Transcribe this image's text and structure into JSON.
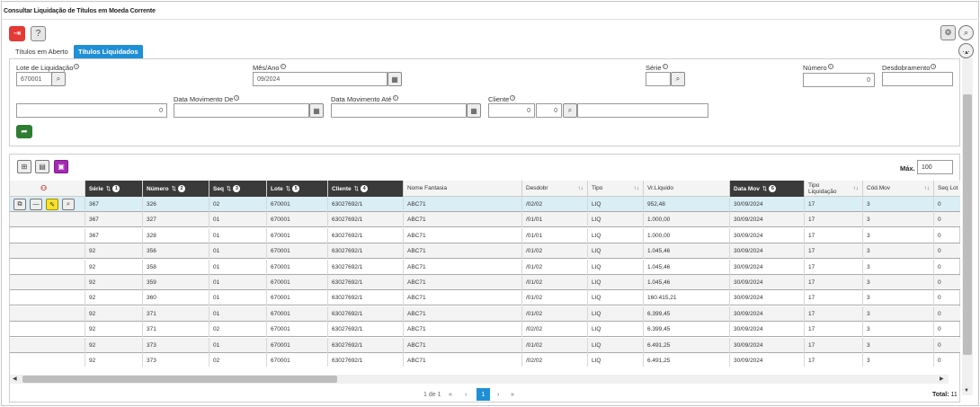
{
  "window": {
    "title": "Consultar Liquidação de Títulos em Moeda Corrente"
  },
  "toolbar": {
    "exit_icon": "exit-icon",
    "help_label": "?",
    "settings_icon": "gear-icon",
    "search_icon": "search-icon",
    "more_label": "···"
  },
  "tabs": [
    {
      "label": "Títulos em Aberto",
      "active": false
    },
    {
      "label": "Títulos Liquidados",
      "active": true
    }
  ],
  "filters": {
    "lote_label": "Lote de Liquidação",
    "lote_value": "670001",
    "mesano_label": "Mês/Ano",
    "mesano_value": "09/2024",
    "serie_label": "Série",
    "serie_value": "",
    "numero_label": "Número",
    "numero_value": "0",
    "desdobramento_label": "Desdobramento",
    "desdobramento_value": "",
    "first_field_value": "0",
    "dmov_de_label": "Data Movimento De",
    "dmov_de_value": "",
    "dmov_ate_label": "Data Movimento Até",
    "dmov_ate_value": "",
    "cliente_label": "Cliente",
    "cliente_value1": "0",
    "cliente_value2": "0",
    "cliente_name": ""
  },
  "grid": {
    "max_label": "Máx.",
    "max_value": "100",
    "columns": [
      {
        "label": "Série",
        "badge": "1"
      },
      {
        "label": "Número",
        "badge": "2"
      },
      {
        "label": "Seq",
        "badge": "3"
      },
      {
        "label": "Lote",
        "badge": "5"
      },
      {
        "label": "Cliente",
        "badge": "4"
      },
      {
        "label": "Nome Fantasia"
      },
      {
        "label": "Desdobr"
      },
      {
        "label": "Tipo"
      },
      {
        "label": "Vr.Líquido"
      },
      {
        "label": "Data Mov",
        "badge": "6"
      },
      {
        "label": "Tipo Liquidação"
      },
      {
        "label": "Cód.Mov"
      },
      {
        "label": "Seq Lot"
      }
    ],
    "rows": [
      [
        "367",
        "326",
        "02",
        "670001",
        "63027692/1",
        "ABC71",
        "/02/02",
        "LIQ",
        "952,48",
        "30/09/2024",
        "17",
        "3",
        "0"
      ],
      [
        "367",
        "327",
        "01",
        "670001",
        "63027692/1",
        "ABC71",
        "/01/01",
        "LIQ",
        "1.000,00",
        "30/09/2024",
        "17",
        "3",
        "0"
      ],
      [
        "367",
        "328",
        "01",
        "670001",
        "63027692/1",
        "ABC71",
        "/01/01",
        "LIQ",
        "1.000,00",
        "30/09/2024",
        "17",
        "3",
        "0"
      ],
      [
        "92",
        "356",
        "01",
        "670001",
        "63027692/1",
        "ABC71",
        "/01/02",
        "LIQ",
        "1.045,46",
        "30/09/2024",
        "17",
        "3",
        "0"
      ],
      [
        "92",
        "358",
        "01",
        "670001",
        "63027692/1",
        "ABC71",
        "/01/02",
        "LIQ",
        "1.045,46",
        "30/09/2024",
        "17",
        "3",
        "0"
      ],
      [
        "92",
        "359",
        "01",
        "670001",
        "63027692/1",
        "ABC71",
        "/01/02",
        "LIQ",
        "1.045,46",
        "30/09/2024",
        "17",
        "3",
        "0"
      ],
      [
        "92",
        "360",
        "01",
        "670001",
        "63027692/1",
        "ABC71",
        "/01/02",
        "LIQ",
        "160.415,21",
        "30/09/2024",
        "17",
        "3",
        "0"
      ],
      [
        "92",
        "371",
        "01",
        "670001",
        "63027692/1",
        "ABC71",
        "/01/02",
        "LIQ",
        "6.399,45",
        "30/09/2024",
        "17",
        "3",
        "0"
      ],
      [
        "92",
        "371",
        "02",
        "670001",
        "63027692/1",
        "ABC71",
        "/02/02",
        "LIQ",
        "6.399,45",
        "30/09/2024",
        "17",
        "3",
        "0"
      ],
      [
        "92",
        "373",
        "01",
        "670001",
        "63027692/1",
        "ABC71",
        "/01/02",
        "LIQ",
        "6.491,25",
        "30/09/2024",
        "17",
        "3",
        "0"
      ],
      [
        "92",
        "373",
        "02",
        "670001",
        "63027692/1",
        "ABC71",
        "/02/02",
        "LIQ",
        "6.491,25",
        "30/09/2024",
        "17",
        "3",
        "0"
      ]
    ],
    "selected_row": 0
  },
  "pagination": {
    "page_info": "1 de 1",
    "first": "«",
    "prev": "‹",
    "current": "1",
    "next": "›",
    "last": "»",
    "total_label": "Total:",
    "total_value": "11"
  },
  "colors": {
    "accent": "#1f8fd6",
    "exit": "#e53935",
    "go": "#2e7d32",
    "purple": "#a629b5",
    "selected_row": "#d9eef5"
  }
}
